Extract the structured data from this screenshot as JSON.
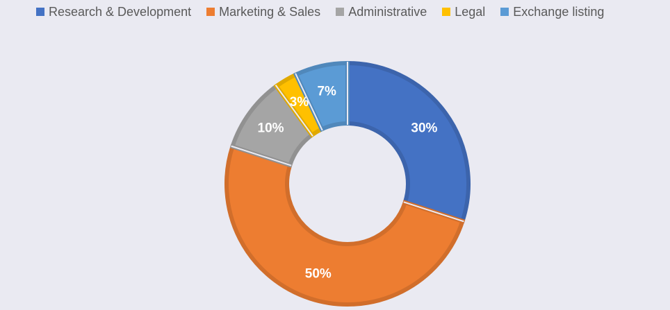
{
  "chart_data": {
    "type": "pie",
    "variant": "donut",
    "title": "",
    "legend_placement": "top",
    "series": [
      {
        "name": "Research & Development",
        "value": 30,
        "label": "30%",
        "color": "#4472c4"
      },
      {
        "name": "Marketing & Sales",
        "value": 50,
        "label": "50%",
        "color": "#ed7d31"
      },
      {
        "name": "Administrative",
        "value": 10,
        "label": "10%",
        "color": "#a5a5a5"
      },
      {
        "name": "Legal",
        "value": 3,
        "label": "3%",
        "color": "#ffc000"
      },
      {
        "name": "Exchange listing",
        "value": 7,
        "label": "7%",
        "color": "#5b9bd5"
      }
    ]
  }
}
